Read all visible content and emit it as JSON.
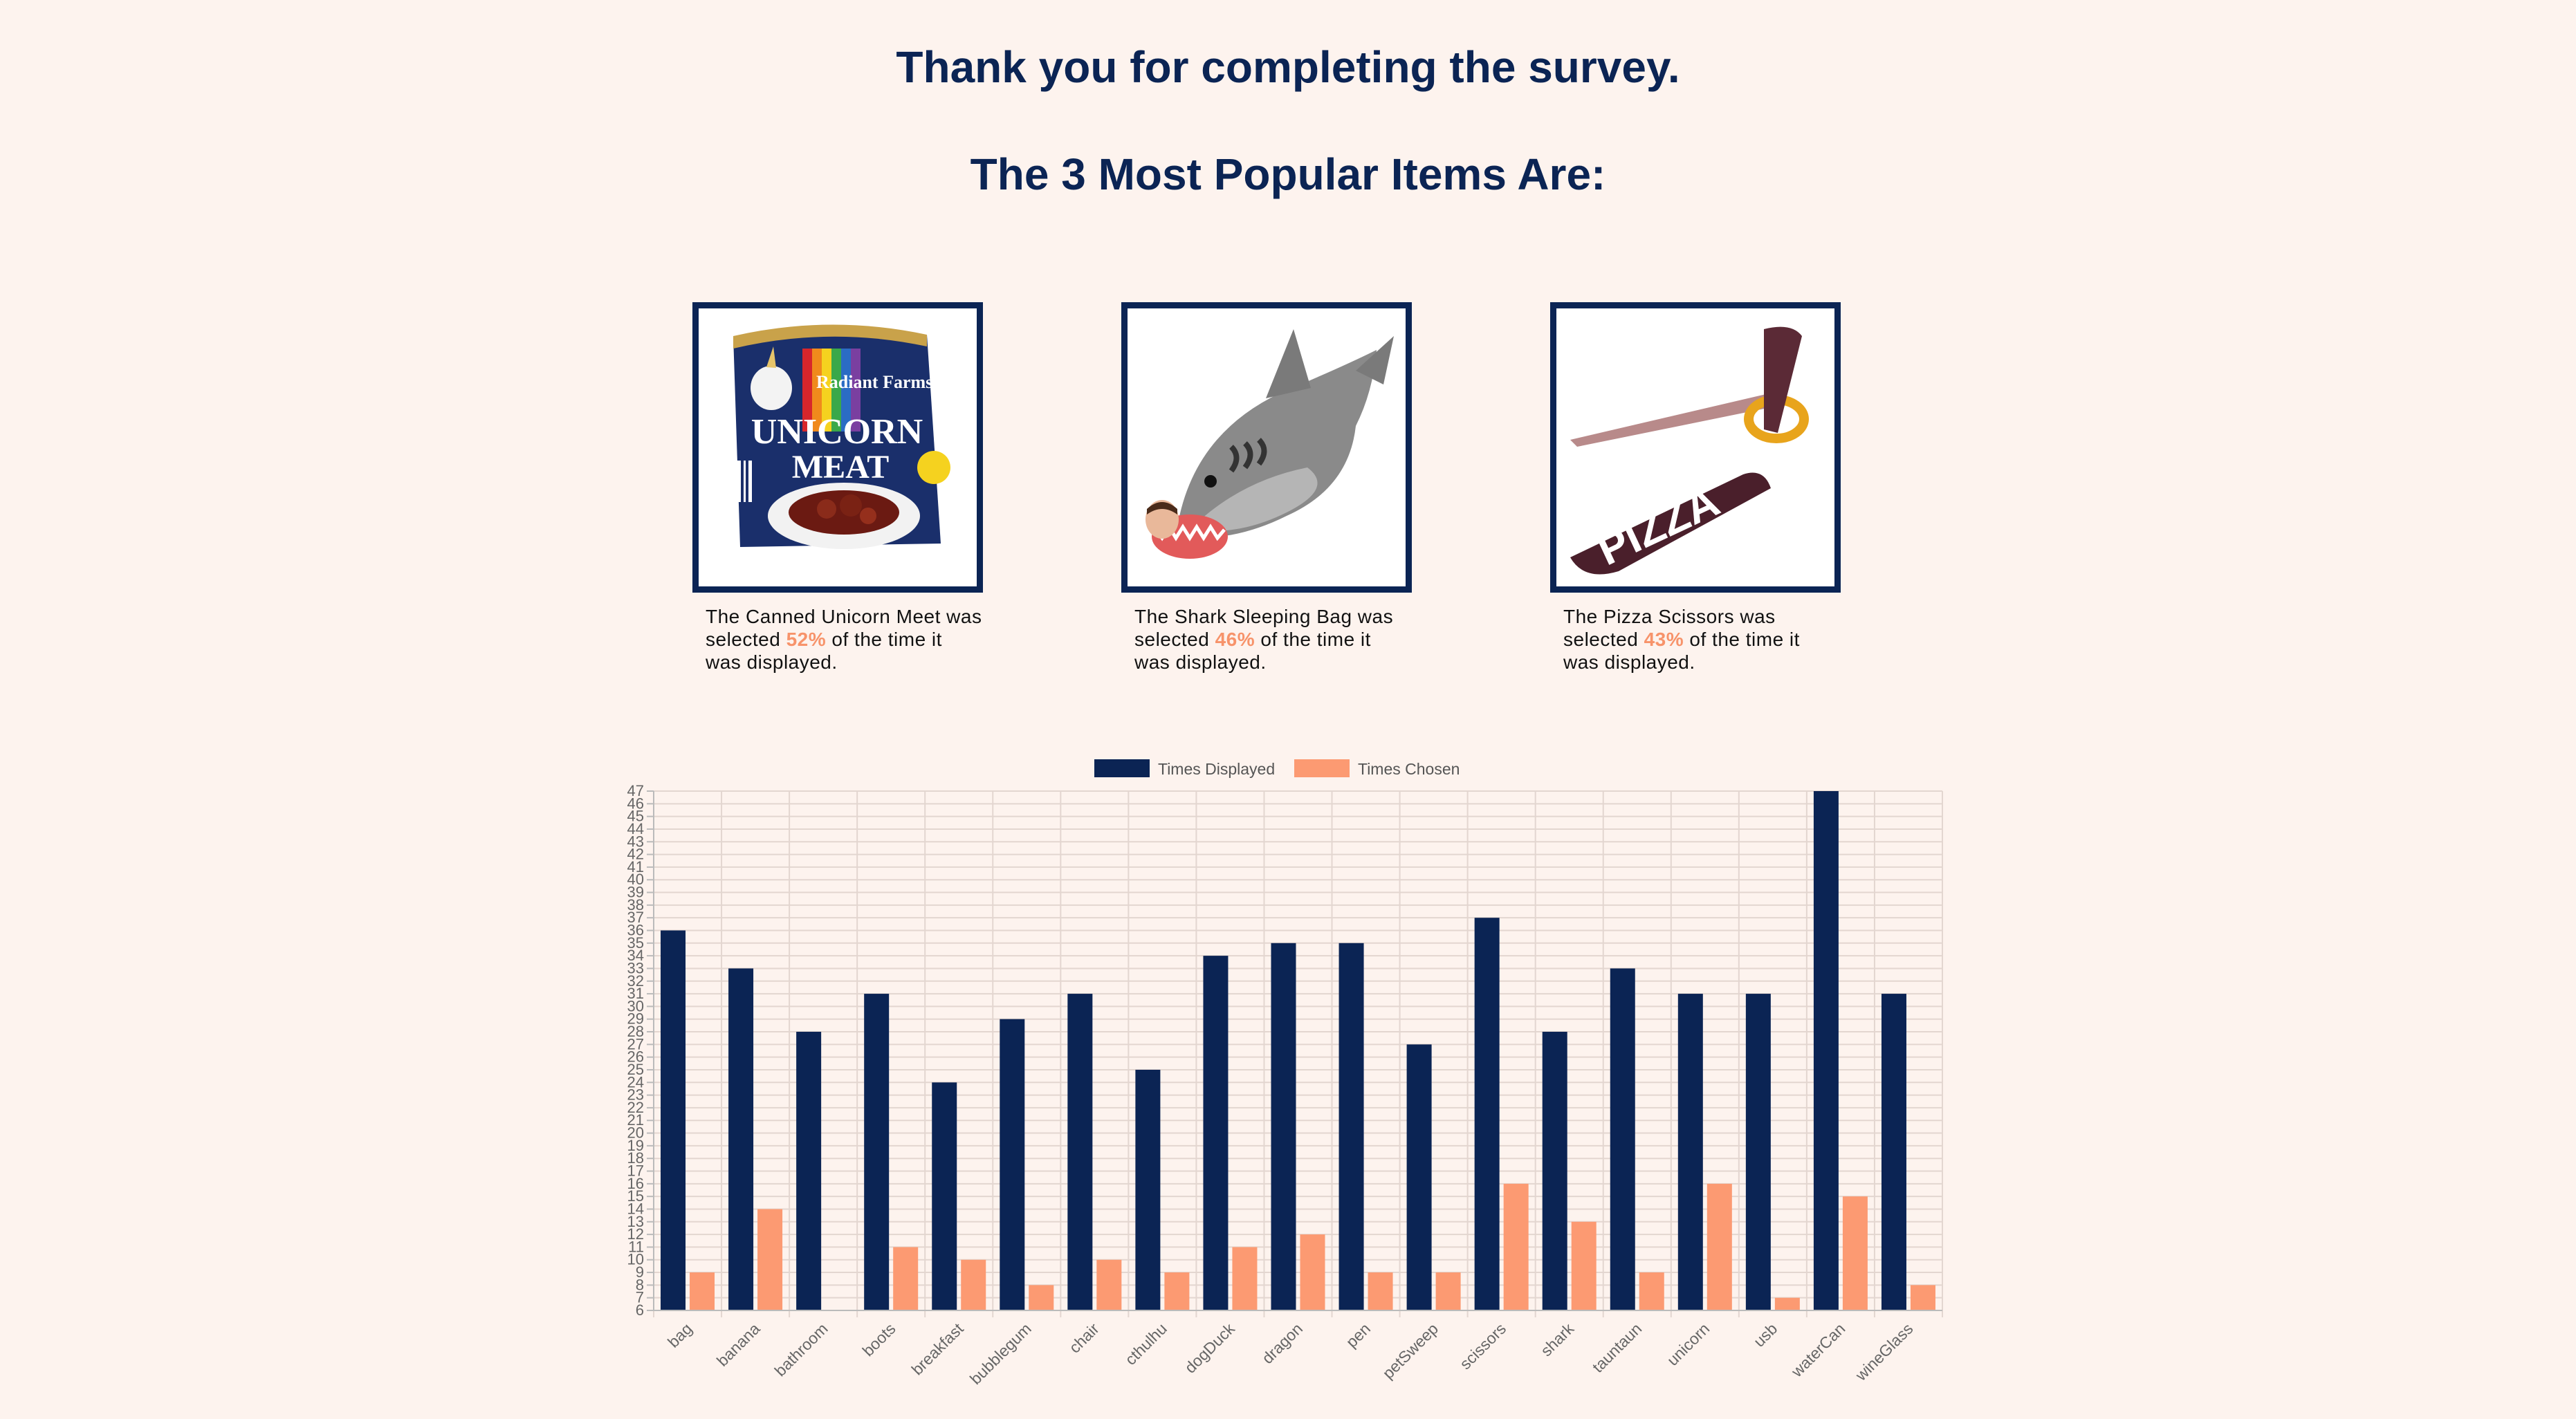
{
  "headings": {
    "thanks": "Thank you for completing the survey.",
    "popular": "The 3 Most Popular Items Are:"
  },
  "top_items": [
    {
      "name": "The Canned Unicorn Meet",
      "image_icon": "canned-unicorn-meat-image",
      "prefix": "The Canned Unicorn Meet was selected",
      "percent": "52%",
      "suffix": "of the time it was displayed."
    },
    {
      "name": "The Shark Sleeping Bag",
      "image_icon": "shark-sleeping-bag-image",
      "prefix": "The Shark Sleeping Bag was selected",
      "percent": "46%",
      "suffix": "of the time it was displayed."
    },
    {
      "name": "The Pizza Scissors",
      "image_icon": "pizza-scissors-image",
      "prefix": "The Pizza Scissors was selected",
      "percent": "43%",
      "suffix": "of the time it was displayed."
    }
  ],
  "image_text": {
    "can_brand": "Radiant Farms",
    "can_label_1": "UNICORN",
    "can_label_2": "MEAT",
    "pizza_word": "PIZZA"
  },
  "colors": {
    "background": "#fdf3ee",
    "navy": "#0b2454",
    "accent": "#f7936a",
    "displayed": "#0b2454",
    "chosen": "#fc9a72"
  },
  "chart_data": {
    "type": "bar",
    "categories": [
      "bag",
      "banana",
      "bathroom",
      "boots",
      "breakfast",
      "bubblegum",
      "chair",
      "cthulhu",
      "dogDuck",
      "dragon",
      "pen",
      "petSweep",
      "scissors",
      "shark",
      "tauntaun",
      "unicorn",
      "usb",
      "waterCan",
      "wineGlass"
    ],
    "series": [
      {
        "name": "Times Displayed",
        "color": "#0b2454",
        "values": [
          36,
          33,
          28,
          31,
          24,
          29,
          31,
          25,
          34,
          35,
          35,
          27,
          37,
          28,
          33,
          31,
          31,
          47,
          31
        ]
      },
      {
        "name": "Times Chosen",
        "color": "#fc9a72",
        "values": [
          9,
          14,
          6,
          11,
          10,
          8,
          10,
          9,
          11,
          12,
          9,
          9,
          16,
          13,
          9,
          16,
          7,
          15,
          8
        ]
      }
    ],
    "ylim": [
      6,
      47
    ],
    "ytick_step": 1,
    "grid": true,
    "legend": "top-center",
    "title": "",
    "xlabel": "",
    "ylabel": ""
  }
}
